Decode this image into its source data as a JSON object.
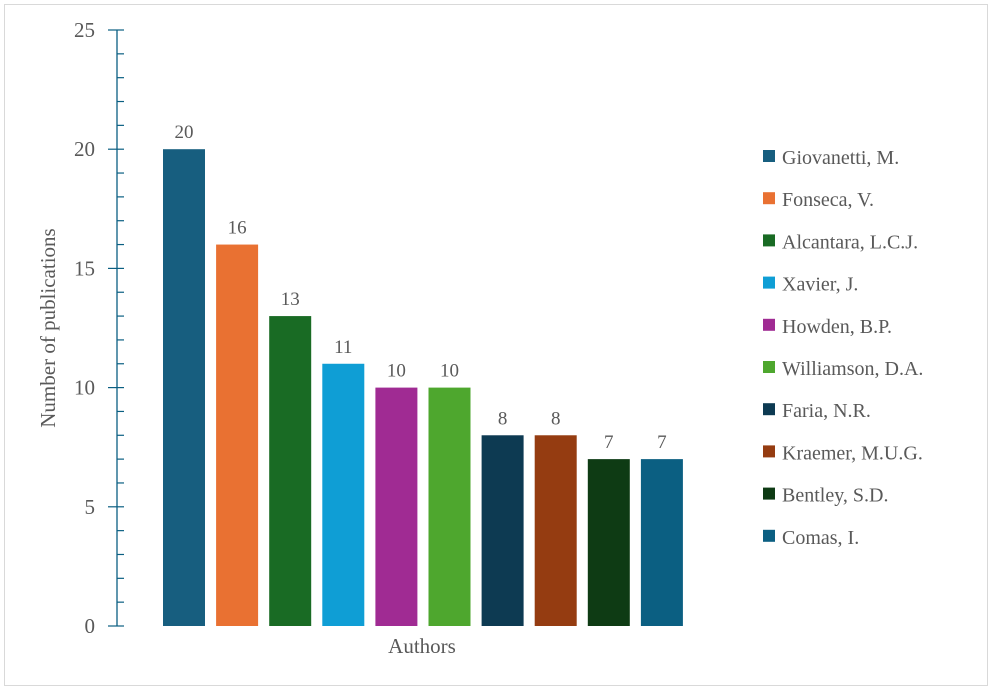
{
  "chart_data": {
    "type": "bar",
    "title": "",
    "xlabel": "Authors",
    "ylabel": "Number of publications",
    "ylim": [
      0,
      25
    ],
    "yticks": [
      0,
      5,
      10,
      15,
      20,
      25
    ],
    "minor_tick_step": 1,
    "grid": false,
    "legend_position": "right",
    "categories": [
      "Giovanetti, M.",
      "Fonseca, V.",
      "Alcantara, L.C.J.",
      "Xavier, J.",
      "Howden, B.P.",
      "Williamson, D.A.",
      "Faria, N.R.",
      "Kraemer, M.U.G.",
      "Bentley, S.D.",
      "Comas, I."
    ],
    "values": [
      20,
      16,
      13,
      11,
      10,
      10,
      8,
      8,
      7,
      7
    ],
    "colors": [
      "#175e7f",
      "#e97132",
      "#196b24",
      "#0f9ed5",
      "#a02b93",
      "#4ea72e",
      "#0d3a52",
      "#953c11",
      "#0e3b14",
      "#0b5f82"
    ],
    "axis_color": "#0b5f82",
    "data_labels": true
  }
}
